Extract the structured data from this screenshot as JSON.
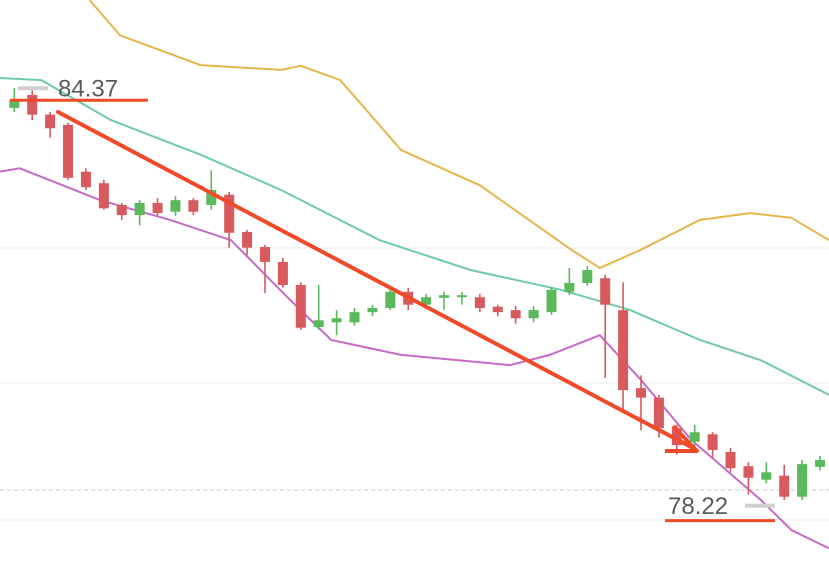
{
  "chart_data": {
    "type": "candlestick",
    "xlim": [
      -0.8,
      45.5
    ],
    "ylim": [
      77.3,
      85.7
    ],
    "up_color": "#5cb85c",
    "down_color": "#d75a5e",
    "open": [
      84.11,
      84.3,
      84.01,
      83.86,
      83.17,
      83.0,
      82.68,
      82.53,
      82.71,
      82.58,
      82.75,
      82.68,
      82.83,
      82.28,
      82.06,
      81.84,
      81.5,
      80.88,
      80.95,
      80.95,
      81.1,
      81.16,
      81.4,
      81.21,
      81.31,
      81.32,
      81.32,
      81.18,
      81.13,
      81.01,
      81.1,
      81.4,
      81.53,
      81.6,
      81.13,
      79.98,
      79.84,
      79.39,
      79.19,
      79.3,
      79.04,
      78.83,
      78.63,
      78.69,
      78.38,
      78.82
    ],
    "high": [
      84.4,
      84.37,
      84.05,
      83.89,
      83.22,
      83.05,
      82.71,
      82.75,
      82.78,
      82.81,
      82.78,
      83.19,
      82.87,
      82.31,
      82.09,
      81.9,
      81.54,
      81.5,
      81.13,
      81.16,
      81.21,
      81.43,
      81.46,
      81.37,
      81.4,
      81.4,
      81.37,
      81.21,
      81.19,
      81.19,
      81.47,
      81.75,
      81.78,
      81.65,
      81.54,
      80.17,
      79.88,
      79.44,
      79.44,
      79.33,
      79.1,
      78.89,
      78.89,
      78.85,
      78.92,
      78.98
    ],
    "low": [
      84.05,
      83.93,
      83.67,
      83.05,
      82.9,
      82.61,
      82.46,
      82.38,
      82.52,
      82.52,
      82.53,
      82.61,
      82.05,
      81.94,
      81.38,
      81.46,
      80.84,
      80.84,
      80.76,
      80.9,
      81.04,
      81.13,
      81.13,
      81.16,
      81.13,
      81.21,
      81.1,
      81.04,
      80.93,
      80.95,
      81.06,
      81.35,
      81.49,
      80.13,
      79.66,
      79.36,
      79.25,
      79.0,
      79.07,
      78.95,
      78.74,
      78.41,
      78.58,
      78.33,
      78.33,
      78.77
    ],
    "close": [
      84.23,
      84.01,
      83.81,
      83.08,
      82.94,
      82.63,
      82.53,
      82.71,
      82.56,
      82.75,
      82.58,
      82.9,
      82.27,
      82.05,
      81.84,
      81.5,
      80.87,
      80.98,
      81.01,
      81.1,
      81.16,
      81.4,
      81.21,
      81.32,
      81.35,
      81.35,
      81.16,
      81.1,
      81.01,
      81.13,
      81.43,
      81.53,
      81.72,
      81.21,
      79.95,
      79.84,
      79.39,
      79.14,
      79.33,
      79.07,
      78.8,
      78.66,
      78.74,
      78.38,
      78.86,
      78.92
    ],
    "bands": [
      {
        "color": "#e6b54c",
        "x": [
          4.2,
          5.9,
          10.4,
          14.9,
          16.0,
          18.2,
          21.6,
          26.0,
          31.1,
          32.7,
          35.0,
          38.3,
          41.1,
          43.4,
          45.5
        ],
        "values": [
          85.7,
          85.18,
          84.74,
          84.67,
          84.73,
          84.52,
          83.49,
          82.97,
          82.02,
          81.75,
          82.02,
          82.46,
          82.56,
          82.49,
          82.16
        ]
      },
      {
        "color": "#6fcaa9",
        "x": [
          -0.8,
          1.5,
          5.4,
          10.4,
          14.9,
          20.4,
          25.5,
          30.5,
          34.4,
          38.3,
          41.7,
          45.5
        ],
        "values": [
          84.55,
          84.52,
          83.93,
          83.42,
          82.9,
          82.16,
          81.72,
          81.43,
          81.13,
          80.69,
          80.39,
          79.88
        ]
      },
      {
        "color": "#c66ac6",
        "x": [
          -0.8,
          0.3,
          4.8,
          8.7,
          12.1,
          15.4,
          17.7,
          21.6,
          27.7,
          29.9,
          32.7,
          35.0,
          37.8,
          41.7,
          43.4,
          45.5
        ],
        "values": [
          83.17,
          83.22,
          82.75,
          82.46,
          82.16,
          81.28,
          80.69,
          80.47,
          80.32,
          80.47,
          80.76,
          80.1,
          79.22,
          78.33,
          77.89,
          77.62
        ]
      }
    ],
    "price_labels": [
      84.37,
      78.22
    ]
  }
}
